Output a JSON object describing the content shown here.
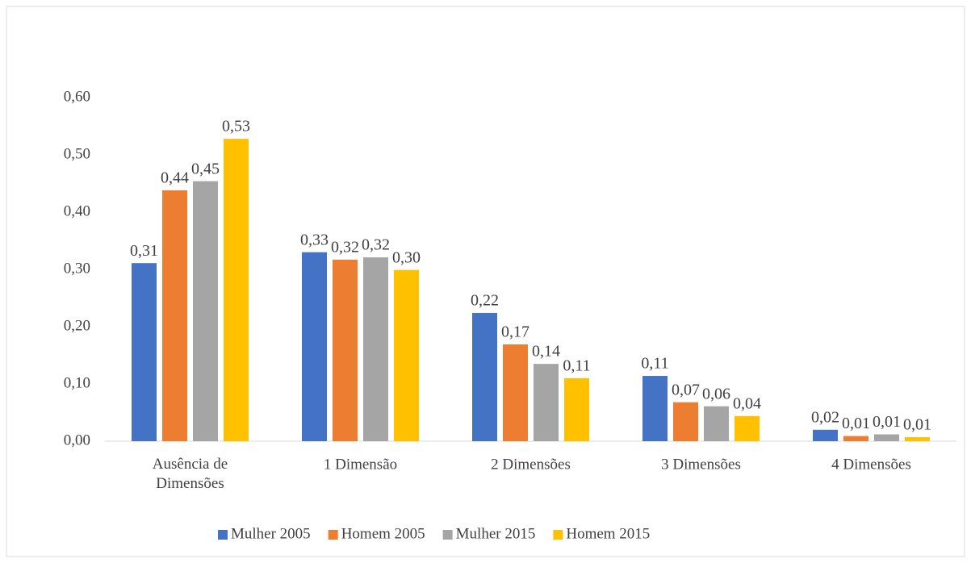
{
  "chart_data": {
    "type": "bar",
    "categories": [
      "Ausência de Dimensões",
      "1 Dimensão",
      "2 Dimensões",
      "3 Dimensões",
      "4 Dimensões"
    ],
    "series": [
      {
        "name": "Mulher 2005",
        "color": "#4472c4",
        "values": [
          0.311,
          0.33,
          0.224,
          0.114,
          0.02
        ],
        "value_labels": [
          "0,31",
          "0,33",
          "0,22",
          "0,11",
          "0,02"
        ]
      },
      {
        "name": "Homem 2005",
        "color": "#ed7d31",
        "values": [
          0.438,
          0.317,
          0.169,
          0.068,
          0.009
        ],
        "value_labels": [
          "0,44",
          "0,32",
          "0,17",
          "0,07",
          "0,01"
        ]
      },
      {
        "name": "Mulher 2015",
        "color": "#a5a5a5",
        "values": [
          0.454,
          0.321,
          0.135,
          0.061,
          0.012
        ],
        "value_labels": [
          "0,45",
          "0,32",
          "0,14",
          "0,06",
          "0,01"
        ]
      },
      {
        "name": "Homem 2015",
        "color": "#ffc000",
        "values": [
          0.528,
          0.299,
          0.11,
          0.044,
          0.007
        ],
        "value_labels": [
          "0,53",
          "0,30",
          "0,11",
          "0,04",
          "0,01"
        ]
      }
    ],
    "ylim": [
      0,
      0.6
    ],
    "yticks": [
      {
        "value": 0,
        "label": "0,00"
      },
      {
        "value": 0.1,
        "label": "0,10"
      },
      {
        "value": 0.2,
        "label": "0,20"
      },
      {
        "value": 0.3,
        "label": "0,30"
      },
      {
        "value": 0.4,
        "label": "0,40"
      },
      {
        "value": 0.5,
        "label": "0,50"
      },
      {
        "value": 0.6,
        "label": "0,60"
      }
    ],
    "grid": false,
    "legend": "bottom"
  }
}
